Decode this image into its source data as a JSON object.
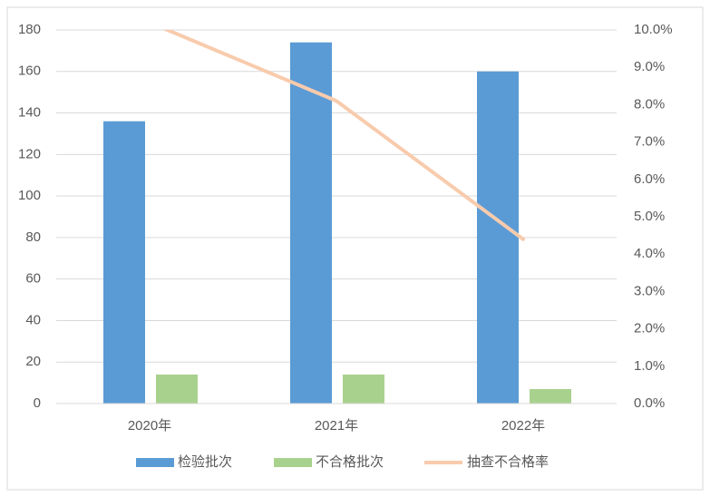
{
  "chart_data": {
    "type": "bar-line",
    "categories": [
      "2020年",
      "2021年",
      "2022年"
    ],
    "series": [
      {
        "name": "检验批次",
        "color": "#5b9bd5",
        "type": "bar",
        "values": [
          136,
          174,
          160
        ]
      },
      {
        "name": "不合格批次",
        "color": "#a9d18e",
        "type": "bar",
        "values": [
          14,
          14,
          7
        ]
      },
      {
        "name": "抽查不合格率",
        "color": "#f8cbad",
        "type": "line",
        "axis": "y2",
        "values": [
          10.2,
          8.1,
          4.4
        ]
      }
    ],
    "ylim": [
      0,
      180
    ],
    "yticks": [
      0,
      20,
      40,
      60,
      80,
      100,
      120,
      140,
      160,
      180
    ],
    "y2lim": [
      0,
      10
    ],
    "y2ticks": [
      {
        "value": 0,
        "label": "0.0%"
      },
      {
        "value": 1,
        "label": "1.0%"
      },
      {
        "value": 2,
        "label": "2.0%"
      },
      {
        "value": 3,
        "label": "3.0%"
      },
      {
        "value": 4,
        "label": "4.0%"
      },
      {
        "value": 5,
        "label": "5.0%"
      },
      {
        "value": 6,
        "label": "6.0%"
      },
      {
        "value": 7,
        "label": "7.0%"
      },
      {
        "value": 8,
        "label": "8.0%"
      },
      {
        "value": 9,
        "label": "9.0%"
      },
      {
        "value": 10,
        "label": "10.0%"
      }
    ],
    "grid": true,
    "legend": "bottom"
  }
}
